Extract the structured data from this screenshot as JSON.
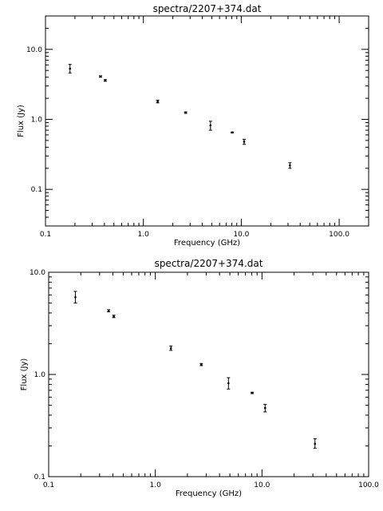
{
  "chart_data": [
    {
      "type": "scatter",
      "title": "spectra/2207+374.dat",
      "xlabel": "Frequency (GHz)",
      "ylabel": "Flux (Jy)",
      "xscale": "log",
      "yscale": "log",
      "xlim": [
        0.1,
        200
      ],
      "ylim": [
        0.03,
        30
      ],
      "xticks": [
        0.1,
        1.0,
        10.0,
        100.0
      ],
      "xtick_labels": [
        "0.1",
        "1.0",
        "10.0",
        "100.0"
      ],
      "yticks": [
        0.1,
        1.0,
        10.0
      ],
      "ytick_labels": [
        "0.1",
        "1.0",
        "10.0"
      ],
      "grid": false,
      "series": [
        {
          "x": [
            0.178,
            0.365,
            0.408,
            1.4,
            2.7,
            4.85,
            8.1,
            10.7,
            31.4
          ],
          "y": [
            5.3,
            4.1,
            3.6,
            1.8,
            1.25,
            0.82,
            0.65,
            0.48,
            0.22
          ],
          "yerr_low": [
            4.6,
            4.0,
            3.5,
            1.72,
            1.22,
            0.7,
            0.64,
            0.44,
            0.2
          ],
          "yerr_high": [
            6.1,
            4.2,
            3.7,
            1.88,
            1.28,
            0.94,
            0.66,
            0.52,
            0.24
          ]
        }
      ]
    },
    {
      "type": "scatter",
      "title": "spectra/2207+374.dat",
      "xlabel": "Frequency (GHz)",
      "ylabel": "Flux (Jy)",
      "xscale": "log",
      "yscale": "log",
      "xlim": [
        0.1,
        100
      ],
      "ylim": [
        0.1,
        10
      ],
      "xticks": [
        0.1,
        1.0,
        10.0,
        100.0
      ],
      "xtick_labels": [
        "0.1",
        "1.0",
        "10.0",
        "100.0"
      ],
      "yticks": [
        0.1,
        1.0,
        10.0
      ],
      "ytick_labels": [
        "0.1",
        "1.0",
        "10.0"
      ],
      "grid": false,
      "series": [
        {
          "x": [
            0.178,
            0.365,
            0.408,
            1.4,
            2.7,
            4.85,
            8.1,
            10.7,
            31.4
          ],
          "y": [
            5.7,
            4.2,
            3.7,
            1.8,
            1.25,
            0.82,
            0.66,
            0.47,
            0.21
          ],
          "yerr_low": [
            5.0,
            4.1,
            3.6,
            1.72,
            1.22,
            0.72,
            0.65,
            0.43,
            0.19
          ],
          "yerr_high": [
            6.5,
            4.3,
            3.8,
            1.9,
            1.28,
            0.93,
            0.67,
            0.51,
            0.235
          ]
        }
      ]
    }
  ]
}
